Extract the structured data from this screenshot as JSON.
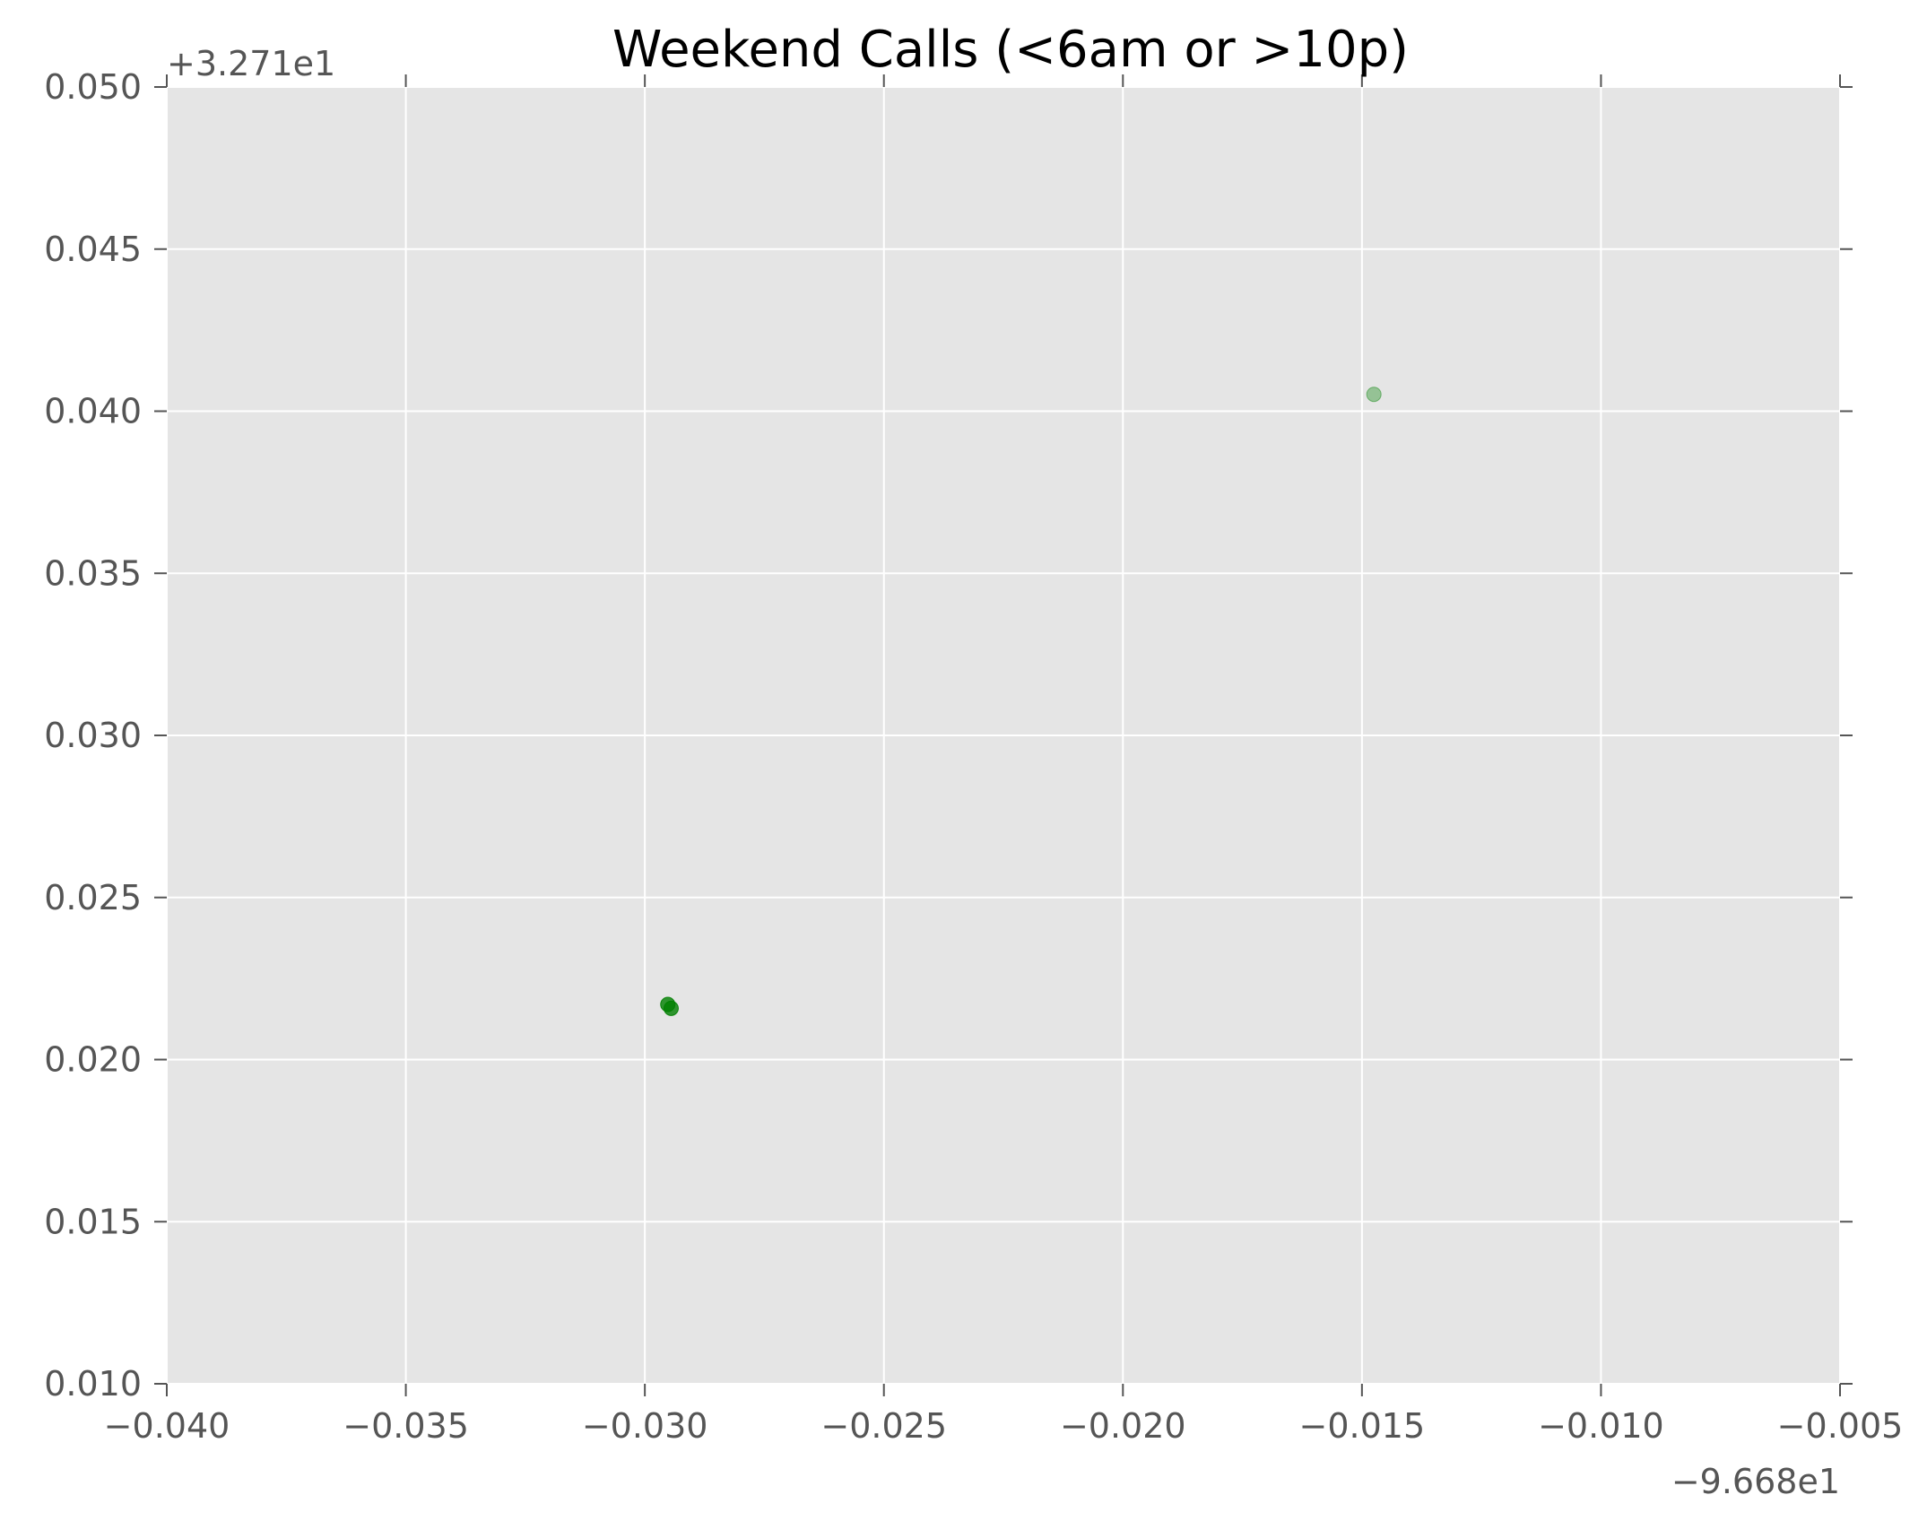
{
  "chart_data": {
    "type": "scatter",
    "title": "Weekend Calls (<6am or >10p)",
    "xlabel": "",
    "ylabel": "",
    "x_offset_label": "−9.668e1",
    "y_offset_label": "+3.271e1",
    "xlim": [
      -0.04,
      -0.005
    ],
    "ylim": [
      0.01,
      0.05
    ],
    "x_ticks": [
      -0.04,
      -0.035,
      -0.03,
      -0.025,
      -0.02,
      -0.015,
      -0.01,
      -0.005
    ],
    "x_tick_labels": [
      "−0.040",
      "−0.035",
      "−0.030",
      "−0.025",
      "−0.020",
      "−0.015",
      "−0.010",
      "−0.005"
    ],
    "y_ticks": [
      0.01,
      0.015,
      0.02,
      0.025,
      0.03,
      0.035,
      0.04,
      0.045,
      0.05
    ],
    "y_tick_labels": [
      "0.010",
      "0.015",
      "0.020",
      "0.025",
      "0.030",
      "0.035",
      "0.040",
      "0.045",
      "0.050"
    ],
    "grid": true,
    "background_color": "#e5e5e5",
    "grid_color": "#ffffff",
    "point_color": "#008000",
    "points": [
      {
        "x": -0.02952,
        "y": 0.0217,
        "alpha": 0.8
      },
      {
        "x": -0.02945,
        "y": 0.02158,
        "alpha": 0.8
      },
      {
        "x": -0.01475,
        "y": 0.04052,
        "alpha": 0.35
      }
    ]
  }
}
